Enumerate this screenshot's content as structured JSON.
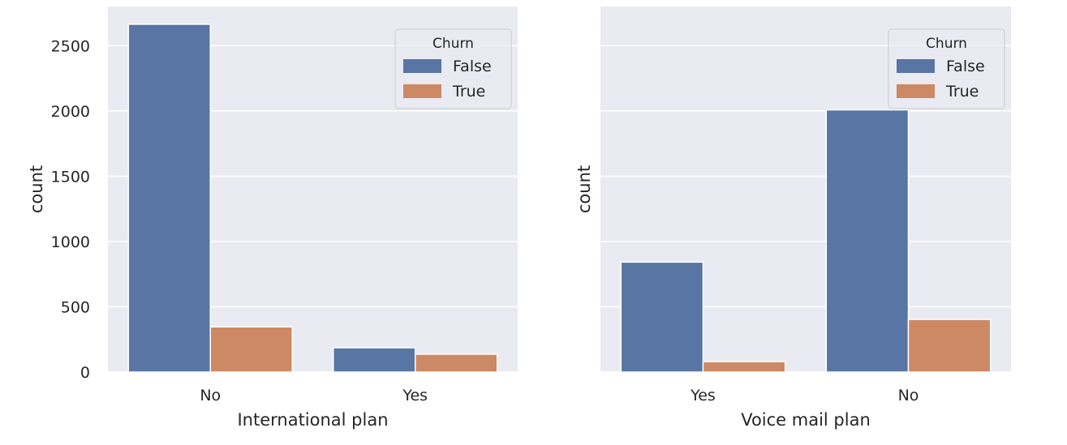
{
  "chart_data": [
    {
      "type": "bar",
      "categories": [
        "No",
        "Yes"
      ],
      "series": [
        {
          "name": "False",
          "values": [
            2664,
            186
          ]
        },
        {
          "name": "True",
          "values": [
            346,
            137
          ]
        }
      ],
      "xlabel": "International plan",
      "ylabel": "count",
      "ylim": [
        0,
        2800
      ],
      "yticks": [
        0,
        500,
        1000,
        1500,
        2000,
        2500
      ],
      "ytick_labels": [
        "0",
        "500",
        "1000",
        "1500",
        "2000",
        "2500"
      ],
      "legend": {
        "title": "Churn",
        "position": "top-right"
      },
      "grid": true
    },
    {
      "type": "bar",
      "categories": [
        "Yes",
        "No"
      ],
      "series": [
        {
          "name": "False",
          "values": [
            842,
            2008
          ]
        },
        {
          "name": "True",
          "values": [
            80,
            403
          ]
        }
      ],
      "xlabel": "Voice mail plan",
      "ylabel": "count",
      "ylim": [
        0,
        2800
      ],
      "yticks": [
        0,
        500,
        1000,
        1500,
        2000,
        2500
      ],
      "ytick_labels": [],
      "legend": {
        "title": "Churn",
        "position": "top-right"
      },
      "grid": true
    }
  ],
  "colors": {
    "background": "#eaeaf2",
    "grid": "#ffffff",
    "false": "#5875a4",
    "true": "#cc8963"
  }
}
